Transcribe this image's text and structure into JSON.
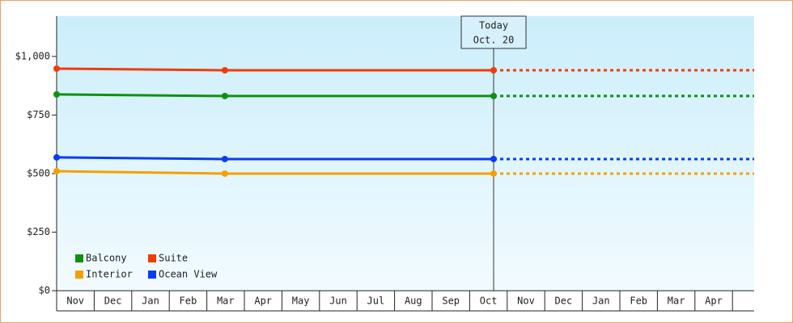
{
  "chart_data": {
    "type": "line",
    "categories": [
      "Nov",
      "Dec",
      "Jan",
      "Feb",
      "Mar",
      "Apr",
      "May",
      "Jun",
      "Jul",
      "Aug",
      "Sep",
      "Oct",
      "Nov",
      "Dec",
      "Jan",
      "Feb",
      "Mar",
      "Apr"
    ],
    "xlim": [
      0,
      18.58
    ],
    "ylim": [
      0,
      1172
    ],
    "yticks": [
      {
        "value": 0,
        "label": "$0"
      },
      {
        "value": 250,
        "label": "$250"
      },
      {
        "value": 500,
        "label": "$500"
      },
      {
        "value": 750,
        "label": "$750"
      },
      {
        "value": 1000,
        "label": "$1,000"
      }
    ],
    "series": [
      {
        "name": "Balcony",
        "color": "#109010",
        "x": [
          0,
          4.48,
          11.64
        ],
        "values": [
          838,
          831,
          831
        ]
      },
      {
        "name": "Suite",
        "color": "#f03c0a",
        "x": [
          0,
          4.48,
          11.64
        ],
        "values": [
          948,
          941,
          941
        ]
      },
      {
        "name": "Interior",
        "color": "#f5a000",
        "x": [
          0,
          4.48,
          11.64
        ],
        "values": [
          510,
          500,
          500
        ]
      },
      {
        "name": "Ocean View",
        "color": "#0a3cf0",
        "x": [
          0,
          4.48,
          11.64
        ],
        "values": [
          569,
          562,
          562
        ]
      }
    ],
    "annotation": {
      "x": 11.64,
      "lines": [
        "Today",
        "Oct. 20"
      ]
    }
  }
}
